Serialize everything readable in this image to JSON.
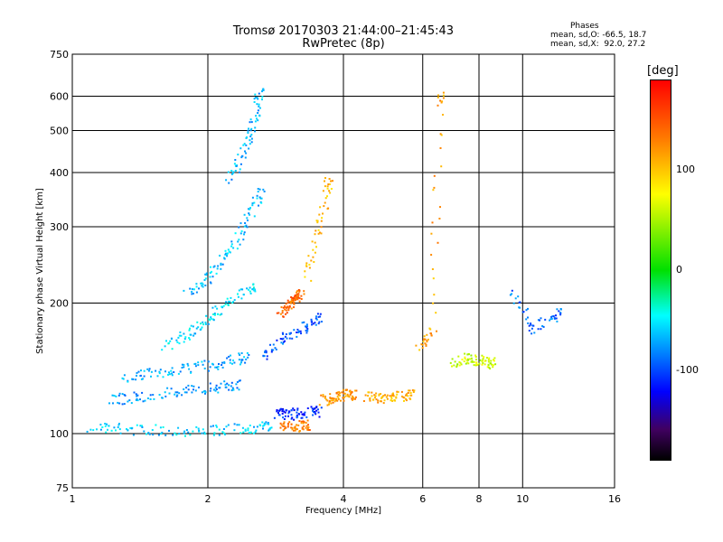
{
  "title": {
    "line1": "Tromsø 20170303 21:44:00–21:45:43",
    "line2": "RwPretec (8p)"
  },
  "stats": {
    "heading": "Phases",
    "o_line": "mean, sd,O: -66.5, 18.7",
    "x_line": "mean, sd,X:  92.0, 27.2"
  },
  "colorbar": {
    "label": "[deg]",
    "ticks": [
      {
        "value": 100,
        "label": "100"
      },
      {
        "value": 0,
        "label": "0"
      },
      {
        "value": -100,
        "label": "-100"
      }
    ],
    "range": [
      -190,
      190
    ]
  },
  "chart_data": {
    "type": "scatter",
    "xlabel": "Frequency [MHz]",
    "ylabel": "Stationary phase Virtual Height [km]",
    "xscale": "log",
    "yscale": "log",
    "xlim": [
      1,
      16
    ],
    "ylim": [
      75,
      750
    ],
    "xticks": [
      1,
      2,
      4,
      6,
      8,
      10,
      16
    ],
    "yticks": [
      75,
      100,
      200,
      300,
      400,
      500,
      600,
      750
    ],
    "grid": true,
    "color_variable": "phase [deg]",
    "traces": [
      {
        "name": "",
        "x": [
          1.1,
          1.3,
          1.6,
          2.0,
          2.4,
          2.7
        ],
        "y": [
          104,
          103,
          102,
          102,
          103,
          104
        ],
        "phase": -60
      },
      {
        "name": "",
        "x": [
          1.2,
          1.4,
          1.7,
          2.0,
          2.3
        ],
        "y": [
          120,
          122,
          125,
          128,
          130
        ],
        "phase": -75
      },
      {
        "name": "",
        "x": [
          1.3,
          1.5,
          1.8,
          2.1,
          2.4
        ],
        "y": [
          135,
          138,
          142,
          145,
          150
        ],
        "phase": -70
      },
      {
        "name": "",
        "x": [
          1.6,
          1.8,
          2.0,
          2.2,
          2.5
        ],
        "y": [
          160,
          170,
          185,
          200,
          220
        ],
        "phase": -55
      },
      {
        "name": "",
        "x": [
          1.8,
          2.0,
          2.2,
          2.4,
          2.6
        ],
        "y": [
          210,
          230,
          260,
          300,
          360
        ],
        "phase": -65
      },
      {
        "name": "",
        "x": [
          2.2,
          2.4,
          2.5,
          2.6
        ],
        "y": [
          380,
          450,
          520,
          610
        ],
        "phase": -70
      },
      {
        "name": "",
        "x": [
          2.6,
          2.9,
          3.2,
          3.5
        ],
        "y": [
          150,
          165,
          175,
          185
        ],
        "phase": -95
      },
      {
        "name": "",
        "x": [
          2.8,
          3.0,
          3.2,
          3.5
        ],
        "y": [
          112,
          111,
          112,
          113
        ],
        "phase": -110
      },
      {
        "name": "",
        "x": [
          2.9,
          3.1,
          3.3
        ],
        "y": [
          104,
          104,
          105
        ],
        "phase": 130
      },
      {
        "name": "",
        "x": [
          2.9,
          3.0,
          3.1,
          3.2
        ],
        "y": [
          190,
          200,
          205,
          210
        ],
        "phase": 140
      },
      {
        "name": "",
        "x": [
          3.3,
          3.5,
          3.7
        ],
        "y": [
          230,
          300,
          380
        ],
        "phase": 105
      },
      {
        "name": "",
        "x": [
          3.6,
          3.8,
          4.0,
          4.2
        ],
        "y": [
          120,
          121,
          123,
          124
        ],
        "phase": 120
      },
      {
        "name": "",
        "x": [
          4.5,
          4.8,
          5.2,
          5.6
        ],
        "y": [
          122,
          121,
          122,
          123
        ],
        "phase": 110
      },
      {
        "name": "",
        "x": [
          5.9,
          6.3,
          6.5
        ],
        "y": [
          160,
          170,
          600
        ],
        "phase": 115
      },
      {
        "name": "",
        "x": [
          7.0,
          7.5,
          8.0,
          8.5
        ],
        "y": [
          145,
          150,
          148,
          146
        ],
        "phase": 60
      },
      {
        "name": "",
        "x": [
          9.5,
          10.5,
          12.0
        ],
        "y": [
          210,
          175,
          190
        ],
        "phase": -90
      }
    ]
  }
}
